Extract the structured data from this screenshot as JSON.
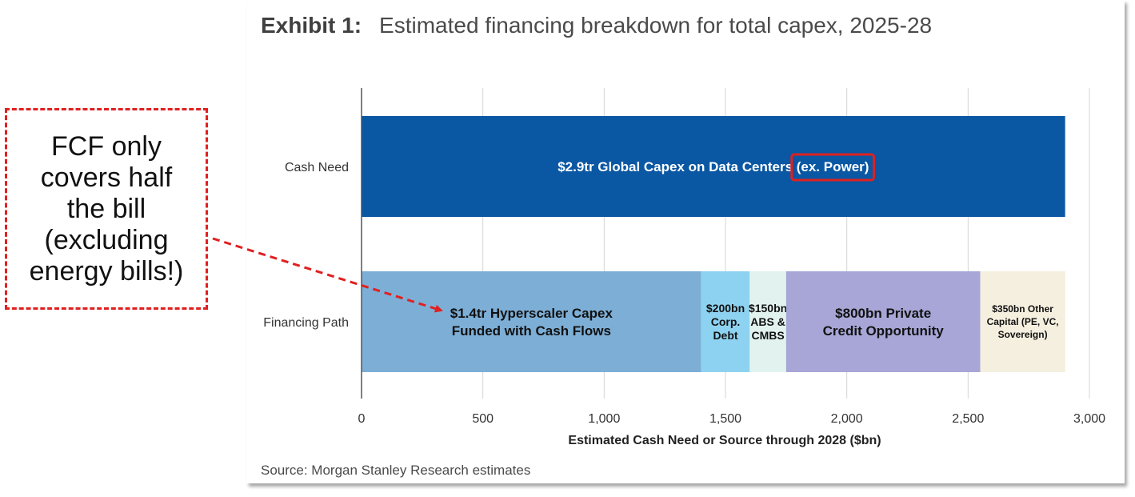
{
  "header": {
    "exhibit_label": "Exhibit 1:",
    "title": "Estimated financing breakdown for total capex, 2025-28"
  },
  "source": "Source: Morgan Stanley Research estimates",
  "callout": {
    "text": "FCF only\ncovers half\nthe bill\n(excluding\nenergy bills!)",
    "color": "#e02020"
  },
  "chart_data": {
    "type": "bar",
    "orientation": "horizontal",
    "stacked": true,
    "xlabel": "Estimated Cash Need or Source through 2028 ($bn)",
    "xlim": [
      0,
      3000
    ],
    "xticks": [
      0,
      500,
      1000,
      1500,
      2000,
      2500,
      3000
    ],
    "xtick_labels": [
      "0",
      "500",
      "1,000",
      "1,500",
      "2,000",
      "2,500",
      "3,000"
    ],
    "grid": "vertical",
    "categories": [
      "Cash Need",
      "Financing Path"
    ],
    "rows": [
      {
        "category": "Cash Need",
        "segments": [
          {
            "value": 2900,
            "color": "#0a57a3",
            "label_lines": [
              "$2.9tr Global Capex on Data Centers (ex. Power)"
            ],
            "label_color": "#ffffff",
            "highlight": "(ex. Power)"
          }
        ]
      },
      {
        "category": "Financing Path",
        "segments": [
          {
            "value": 1400,
            "color": "#7daed6",
            "label_lines": [
              "$1.4tr Hyperscaler Capex",
              "Funded with Cash Flows"
            ],
            "label_color": "#111111"
          },
          {
            "value": 200,
            "color": "#8dd2f0",
            "label_lines": [
              "$200bn",
              "Corp.",
              "Debt"
            ],
            "label_color": "#111111"
          },
          {
            "value": 150,
            "color": "#e2f3ef",
            "label_lines": [
              "$150bn",
              "ABS &",
              "CMBS"
            ],
            "label_color": "#111111"
          },
          {
            "value": 800,
            "color": "#a7a6d6",
            "label_lines": [
              "$800bn Private",
              "Credit Opportunity"
            ],
            "label_color": "#111111"
          },
          {
            "value": 350,
            "color": "#f5efdf",
            "label_lines": [
              "$350bn Other",
              "Capital (PE, VC,",
              "Sovereign)"
            ],
            "label_color": "#111111"
          }
        ]
      }
    ]
  }
}
